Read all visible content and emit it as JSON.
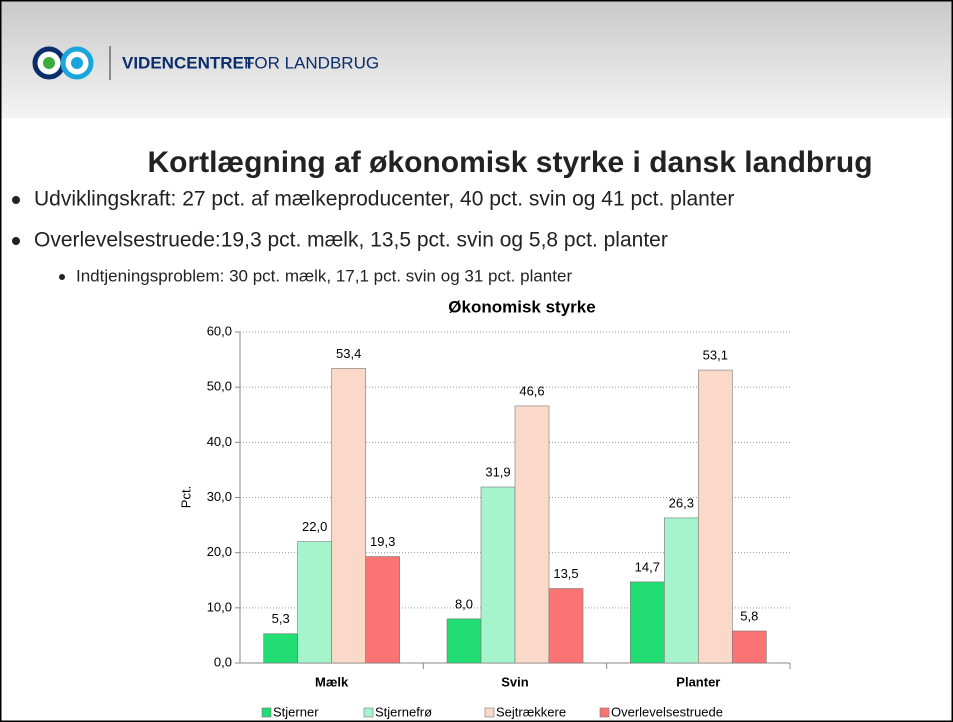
{
  "header": {
    "brand_bold": "VIDENCENTRET",
    "brand_rest": "FOR LANDBRUG"
  },
  "slide_title": "Kortlægning af økonomisk styrke i dansk landbrug",
  "bullets": [
    "Udviklingskraft: 27 pct. af mælkeproducenter, 40 pct. svin og 41 pct. planter",
    "Overlevelsestruede:19,3 pct. mælk, 13,5 pct. svin og 5,8 pct. planter"
  ],
  "sub_bullets": [
    "Indtjeningsproblem: 30 pct. mælk, 17,1 pct. svin og 31 pct. planter"
  ],
  "chart_data": {
    "type": "bar",
    "title": "Økonomisk styrke",
    "y_label": "Pct.",
    "categories": [
      "Mælk",
      "Svin",
      "Planter"
    ],
    "series": [
      {
        "name": "Stjerner",
        "color": "#22dc74",
        "values": [
          5.3,
          8.0,
          14.7
        ],
        "value_labels": [
          "5,3",
          "8,0",
          "14,7"
        ]
      },
      {
        "name": "Stjernefrø",
        "color": "#a6f4cb",
        "values": [
          22.0,
          31.9,
          26.3
        ],
        "value_labels": [
          "22,0",
          "31,9",
          "26,3"
        ]
      },
      {
        "name": "Sejtrækkere",
        "color": "#fbd9c8",
        "values": [
          53.4,
          46.6,
          53.1
        ],
        "value_labels": [
          "53,4",
          "46,6",
          "53,1"
        ]
      },
      {
        "name": "Overlevelsestruede",
        "color": "#fb7373",
        "values": [
          19.3,
          13.5,
          5.8
        ],
        "value_labels": [
          "19,3",
          "13,5",
          "5,8"
        ]
      }
    ],
    "ylim": [
      0,
      60
    ],
    "yticks": [
      {
        "value": 0,
        "label": "0,0"
      },
      {
        "value": 10,
        "label": "10,0"
      },
      {
        "value": 20,
        "label": "20,0"
      },
      {
        "value": 30,
        "label": "30,0"
      },
      {
        "value": 40,
        "label": "40,0"
      },
      {
        "value": 50,
        "label": "50,0"
      },
      {
        "value": 60,
        "label": "60,0"
      }
    ],
    "grid": true,
    "legend": "bottom"
  }
}
